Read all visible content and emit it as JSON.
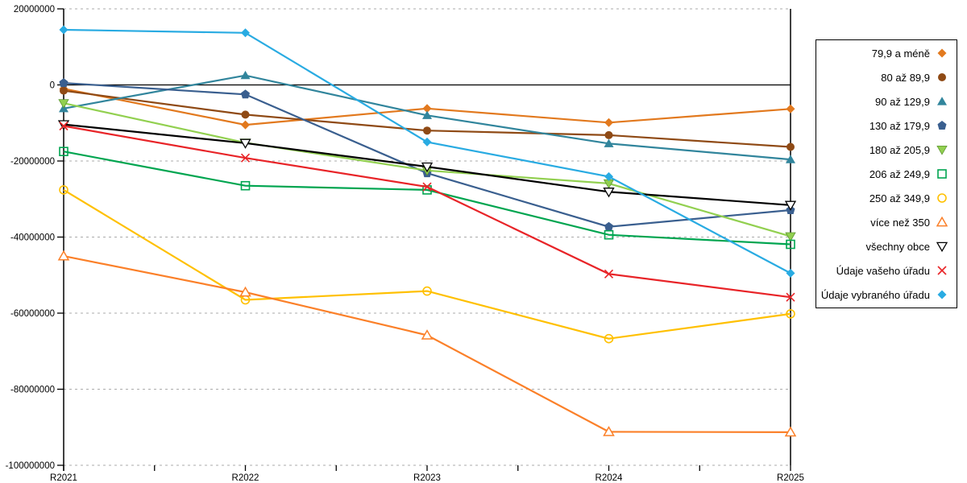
{
  "chart_data": {
    "type": "line",
    "title": "",
    "xlabel": "",
    "ylabel": "",
    "x_categories": [
      "R2021",
      "R2022",
      "R2023",
      "R2024",
      "R2025"
    ],
    "y_ticks": [
      20000000,
      0,
      -20000000,
      -40000000,
      -60000000,
      -80000000,
      -100000000
    ],
    "y_tick_labels": [
      "20000000",
      "0",
      "-20000000",
      "-40000000",
      "-60000000",
      "-80000000",
      "-100000000"
    ],
    "ylim": [
      -100000000,
      20000000
    ],
    "grid": "horizontal-dashed",
    "legend_position": "right-outside",
    "series": [
      {
        "name": "79,9 a méně",
        "color": "#E2791E",
        "marker": "diamond",
        "values": [
          -1000000,
          -10500000,
          -6200000,
          -9900000,
          -6300000
        ]
      },
      {
        "name": "80 až 89,9",
        "color": "#8F4A15",
        "marker": "circle",
        "values": [
          -1500000,
          -7800000,
          -12000000,
          -13200000,
          -16300000
        ]
      },
      {
        "name": "90 až 129,9",
        "color": "#31859C",
        "marker": "triangle-up",
        "values": [
          -6200000,
          2500000,
          -8000000,
          -15400000,
          -19600000
        ]
      },
      {
        "name": "130 až 179,9",
        "color": "#3A5F8F",
        "marker": "pentagon",
        "values": [
          500000,
          -2500000,
          -23200000,
          -37300000,
          -32900000
        ]
      },
      {
        "name": "180 až 205,9",
        "color": "#92D050",
        "marker": "triangle-down",
        "values": [
          -4800000,
          -15200000,
          -22500000,
          -25900000,
          -39800000
        ]
      },
      {
        "name": "206 až 249,9",
        "color": "#00A550",
        "marker": "square-open",
        "values": [
          -17500000,
          -26500000,
          -27600000,
          -39400000,
          -41900000
        ]
      },
      {
        "name": "250 až 349,9",
        "color": "#FFC000",
        "marker": "circle-open",
        "values": [
          -27600000,
          -56500000,
          -54200000,
          -66700000,
          -60200000
        ]
      },
      {
        "name": "více než 350",
        "color": "#FB8029",
        "marker": "triangle-up-open",
        "values": [
          -45000000,
          -54500000,
          -65800000,
          -91200000,
          -91300000
        ]
      },
      {
        "name": "všechny obce",
        "color": "#000000",
        "marker": "triangle-down-open",
        "values": [
          -10400000,
          -15300000,
          -21500000,
          -28100000,
          -31600000
        ]
      },
      {
        "name": "Údaje vašeho úřadu",
        "color": "#E82428",
        "marker": "x-cross",
        "values": [
          -10800000,
          -19200000,
          -26800000,
          -49700000,
          -55800000
        ]
      },
      {
        "name": "Údaje vybraného úřadu",
        "color": "#29ABE2",
        "marker": "diamond",
        "values": [
          14500000,
          13700000,
          -15000000,
          -24100000,
          -49500000
        ]
      }
    ]
  }
}
